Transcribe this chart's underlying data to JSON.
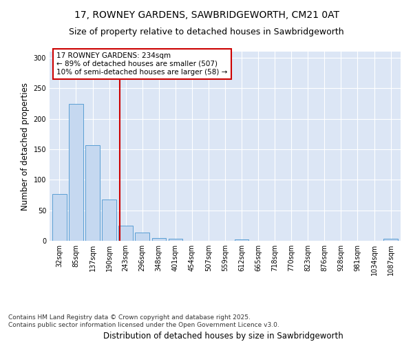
{
  "title_line1": "17, ROWNEY GARDENS, SAWBRIDGEWORTH, CM21 0AT",
  "title_line2": "Size of property relative to detached houses in Sawbridgeworth",
  "xlabel": "Distribution of detached houses by size in Sawbridgeworth",
  "ylabel": "Number of detached properties",
  "bar_labels": [
    "32sqm",
    "85sqm",
    "137sqm",
    "190sqm",
    "243sqm",
    "296sqm",
    "348sqm",
    "401sqm",
    "454sqm",
    "507sqm",
    "559sqm",
    "612sqm",
    "665sqm",
    "718sqm",
    "770sqm",
    "823sqm",
    "876sqm",
    "928sqm",
    "981sqm",
    "1034sqm",
    "1087sqm"
  ],
  "bar_values": [
    77,
    224,
    157,
    68,
    25,
    13,
    4,
    3,
    0,
    0,
    0,
    2,
    0,
    0,
    0,
    0,
    0,
    0,
    0,
    0,
    3
  ],
  "bar_color": "#c5d8f0",
  "bar_edge_color": "#5a9fd4",
  "vline_x": 3.62,
  "vline_color": "#cc0000",
  "annotation_text": "17 ROWNEY GARDENS: 234sqm\n← 89% of detached houses are smaller (507)\n10% of semi-detached houses are larger (58) →",
  "annotation_box_color": "#cc0000",
  "ylim": [
    0,
    310
  ],
  "yticks": [
    0,
    50,
    100,
    150,
    200,
    250,
    300
  ],
  "background_color": "#dce6f5",
  "grid_color": "#ffffff",
  "footer_text": "Contains HM Land Registry data © Crown copyright and database right 2025.\nContains public sector information licensed under the Open Government Licence v3.0.",
  "title_fontsize": 10,
  "subtitle_fontsize": 9,
  "label_fontsize": 8.5,
  "tick_fontsize": 7,
  "footer_fontsize": 6.5,
  "annotation_fontsize": 7.5
}
